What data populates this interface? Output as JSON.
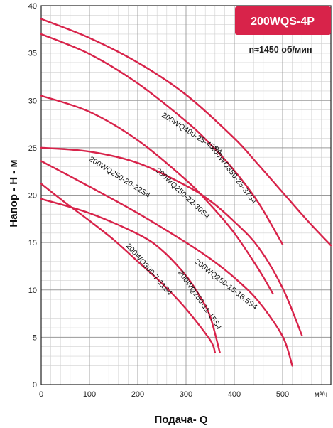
{
  "chart_data": {
    "type": "line",
    "title": "200WQS-4P",
    "subtitle": "n≈1450 об/мин",
    "xlabel": "Подача- Q",
    "x_unit": "м³/ч",
    "ylabel": "Напор - Н - м",
    "xlim": [
      0,
      600
    ],
    "ylim": [
      0,
      40
    ],
    "x_ticks": [
      0,
      100,
      200,
      300,
      400,
      500
    ],
    "y_ticks": [
      0,
      5,
      10,
      15,
      20,
      25,
      30,
      35,
      40
    ],
    "grid": true,
    "color": "#d8234a",
    "badge_color": "#d8234a",
    "series": [
      {
        "name": "200WQ400-25-45S4",
        "x": [
          0,
          100,
          200,
          300,
          400,
          450,
          500,
          550,
          600
        ],
        "y": [
          38.6,
          36.6,
          34.0,
          30.6,
          26.0,
          23.2,
          20.3,
          17.4,
          14.7
        ]
      },
      {
        "name": "200WQ350-25-37S4",
        "x": [
          0,
          100,
          200,
          300,
          350,
          400,
          450,
          500
        ],
        "y": [
          37.0,
          34.9,
          31.8,
          27.8,
          25.4,
          22.6,
          19.2,
          14.8
        ]
      },
      {
        "name": "200WQ250-22-30S4",
        "x": [
          0,
          100,
          200,
          300,
          350,
          400,
          450,
          480
        ],
        "y": [
          30.5,
          28.8,
          25.8,
          21.6,
          19.0,
          16.0,
          12.2,
          9.6
        ]
      },
      {
        "name": "200WQ250-20-22S4",
        "x": [
          0,
          100,
          200,
          300,
          350,
          400,
          450,
          500,
          540
        ],
        "y": [
          25.0,
          24.6,
          23.4,
          21.0,
          19.4,
          17.2,
          14.5,
          10.2,
          5.2
        ]
      },
      {
        "name": "200WQ250-15-18.5S4",
        "x": [
          0,
          100,
          200,
          300,
          350,
          400,
          450,
          500,
          520
        ],
        "y": [
          23.6,
          20.9,
          18.1,
          15.0,
          13.3,
          11.3,
          8.8,
          5.1,
          2.0
        ]
      },
      {
        "name": "200WQ300-7-11S4",
        "x": [
          0,
          50,
          100,
          150,
          200,
          250,
          300,
          350,
          360
        ],
        "y": [
          21.2,
          19.2,
          17.3,
          15.3,
          13.0,
          10.7,
          8.0,
          4.7,
          3.4
        ]
      },
      {
        "name": "200WQ250-11-15S4",
        "x": [
          0,
          100,
          200,
          250,
          300,
          330,
          350,
          370
        ],
        "y": [
          19.6,
          18.1,
          15.9,
          14.2,
          11.5,
          9.2,
          7.2,
          3.4
        ]
      }
    ],
    "curve_labels": [
      {
        "series": 0,
        "text": "200WQ400-25-45S4",
        "x": 310,
        "y": 26.3,
        "angle": 33
      },
      {
        "series": 1,
        "text": "200WQ350-25-37S4",
        "x": 395,
        "y": 22.0,
        "angle": 53
      },
      {
        "series": 2,
        "text": "200WQ250-22-30S4",
        "x": 290,
        "y": 20.0,
        "angle": 43
      },
      {
        "series": 3,
        "text": "200WQ250-20-22S4",
        "x": 160,
        "y": 21.7,
        "angle": 32
      },
      {
        "series": 4,
        "text": "200WQ250-15-18.5S4",
        "x": 380,
        "y": 10.4,
        "angle": 38
      },
      {
        "series": 5,
        "text": "200WQ300-7-11S4",
        "x": 220,
        "y": 12.0,
        "angle": 49
      },
      {
        "series": 6,
        "text": "200WQ250-11-15S4",
        "x": 325,
        "y": 8.8,
        "angle": 55
      }
    ]
  }
}
